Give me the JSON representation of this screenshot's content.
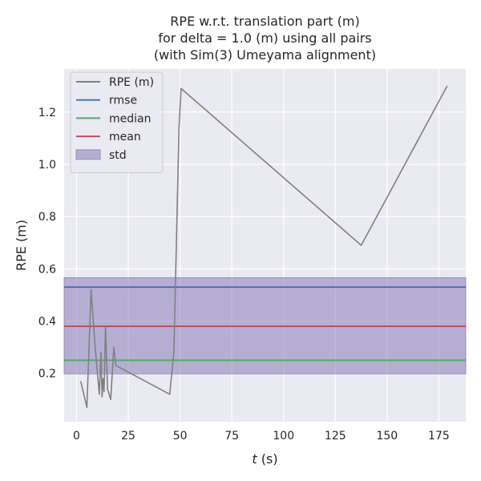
{
  "chart_data": {
    "type": "line",
    "title": [
      "RPE w.r.t. translation part (m)",
      "for delta = 1.0 (m) using all pairs",
      "(with Sim(3) Umeyama alignment)"
    ],
    "xlabel_var": "t",
    "xlabel_unit": " (s)",
    "ylabel": "RPE (m)",
    "xlim": [
      -6,
      188
    ],
    "ylim": [
      0.015,
      1.365
    ],
    "xticks": [
      0,
      25,
      50,
      75,
      100,
      125,
      150,
      175
    ],
    "xtick_labels": [
      "0",
      "25",
      "50",
      "75",
      "100",
      "125",
      "150",
      "175"
    ],
    "yticks": [
      0.2,
      0.4,
      0.6,
      0.8,
      1.0,
      1.2
    ],
    "ytick_labels": [
      "0.2",
      "0.4",
      "0.6",
      "0.8",
      "1.0",
      "1.2"
    ],
    "grid": true,
    "legend_position": "top-left",
    "background": "#eaeaf2",
    "series": [
      {
        "name": "RPE (m)",
        "color": "#808080",
        "x": [
          2,
          5,
          7,
          9,
          11,
          11.8,
          12.3,
          12.8,
          13.3,
          14,
          15,
          16.5,
          18,
          19,
          45,
          47,
          49.5,
          50.5,
          137.5,
          179
        ],
        "y": [
          0.17,
          0.07,
          0.52,
          0.3,
          0.12,
          0.28,
          0.11,
          0.18,
          0.13,
          0.38,
          0.14,
          0.1,
          0.3,
          0.23,
          0.12,
          0.28,
          1.14,
          1.29,
          0.69,
          1.3
        ]
      }
    ],
    "stats": [
      {
        "name": "rmse",
        "value": 0.53,
        "color": "#4c72b0"
      },
      {
        "name": "median",
        "value": 0.25,
        "color": "#55a868"
      },
      {
        "name": "mean",
        "value": 0.38,
        "color": "#c44e52"
      }
    ],
    "std": {
      "name": "std",
      "low": 0.198,
      "high": 0.566,
      "color": "#8172b2"
    }
  }
}
